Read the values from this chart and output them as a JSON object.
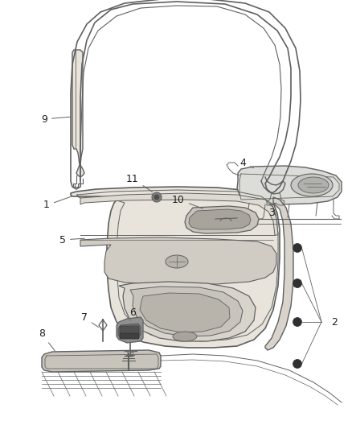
{
  "bg_color": "#ffffff",
  "fig_width": 4.38,
  "fig_height": 5.33,
  "dpi": 100,
  "line_color": "#606060",
  "light_line": "#909090",
  "fill_door": "#e8e4dc",
  "fill_trim": "#d8d4cc",
  "fill_pocket": "#c8c4bc",
  "fill_dark": "#a8a49c",
  "dot_color": "#303030"
}
